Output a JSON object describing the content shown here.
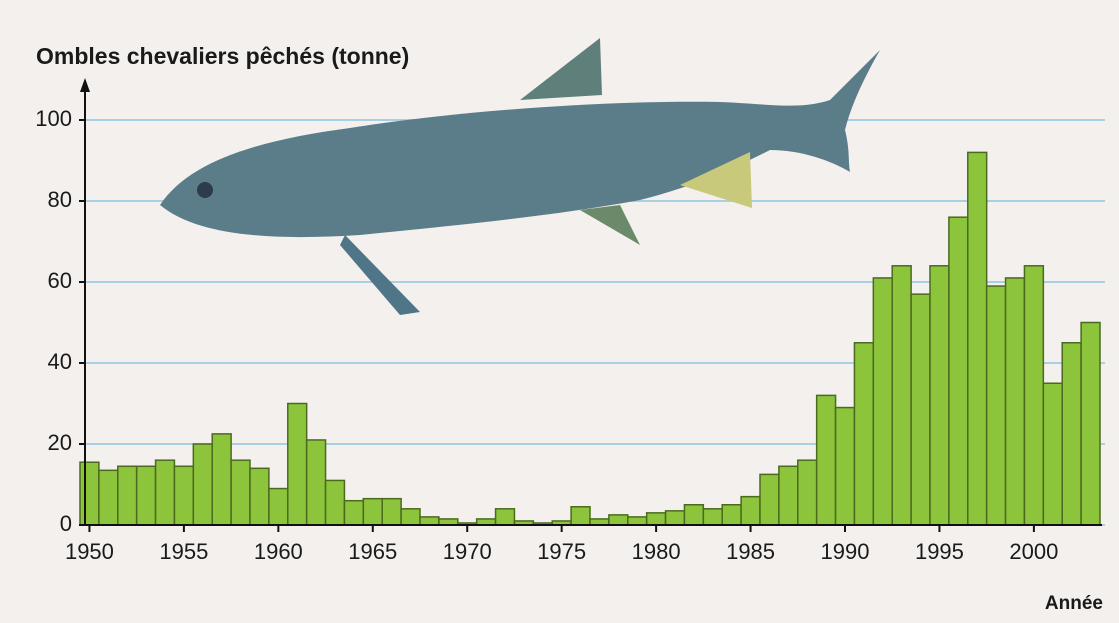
{
  "chart_data": {
    "type": "bar",
    "title": "Ombles chevaliers pêchés (tonne)",
    "x_label": "Année",
    "x": [
      1950,
      1951,
      1952,
      1953,
      1954,
      1955,
      1956,
      1957,
      1958,
      1959,
      1960,
      1961,
      1962,
      1963,
      1964,
      1965,
      1966,
      1967,
      1968,
      1969,
      1970,
      1971,
      1972,
      1973,
      1974,
      1975,
      1976,
      1977,
      1978,
      1979,
      1980,
      1981,
      1982,
      1983,
      1984,
      1985,
      1986,
      1987,
      1988,
      1989,
      1990,
      1991,
      1992,
      1993,
      1994,
      1995,
      1996,
      1997,
      1998,
      1999,
      2000,
      2001,
      2002,
      2003
    ],
    "values": [
      15.5,
      13.5,
      14.5,
      14.5,
      16,
      14.5,
      20,
      22.5,
      16,
      14,
      9,
      30,
      21,
      11,
      6,
      6.5,
      6.5,
      4,
      2,
      1.5,
      0.5,
      1.5,
      4,
      1,
      0.5,
      1,
      4.5,
      1.5,
      2.5,
      2,
      3,
      3.5,
      5,
      4,
      5,
      7,
      12.5,
      14.5,
      16,
      32,
      29,
      45,
      61,
      64,
      57,
      64,
      76,
      92,
      59,
      61,
      64,
      35,
      45,
      50
    ],
    "color": "#8cc43c",
    "xlim": [
      1949.5,
      2003.5
    ],
    "xticks": [
      1950,
      1955,
      1960,
      1965,
      1970,
      1975,
      1980,
      1985,
      1990,
      1995,
      2000
    ],
    "ylim": [
      0,
      100
    ],
    "yticks": [
      0,
      20,
      40,
      60,
      80,
      100
    ],
    "grid": true
  }
}
